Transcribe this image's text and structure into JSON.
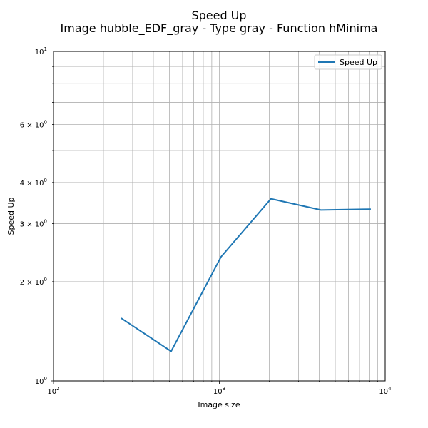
{
  "chart_data": {
    "type": "line",
    "title": "Speed Up",
    "subtitle": "Image hubble_EDF_gray - Type gray - Function hMinima",
    "xlabel": "Image size",
    "ylabel": "Speed Up",
    "xscale": "log",
    "yscale": "log",
    "xlim": [
      100,
      10000
    ],
    "ylim": [
      1,
      10
    ],
    "grid": "both major and minor",
    "legend_position": "top-right",
    "x_ticks": [
      {
        "value": 100,
        "base": "10",
        "exp": "2"
      },
      {
        "value": 1000,
        "base": "10",
        "exp": "3"
      },
      {
        "value": 10000,
        "base": "10",
        "exp": "4"
      }
    ],
    "y_ticks": [
      {
        "value": 1,
        "base": "10",
        "exp": "0",
        "mantissa": ""
      },
      {
        "value": 2,
        "base": "10",
        "exp": "0",
        "mantissa": "2 × "
      },
      {
        "value": 3,
        "base": "10",
        "exp": "0",
        "mantissa": "3 × "
      },
      {
        "value": 4,
        "base": "10",
        "exp": "0",
        "mantissa": "4 × "
      },
      {
        "value": 6,
        "base": "10",
        "exp": "0",
        "mantissa": "6 × "
      },
      {
        "value": 10,
        "base": "10",
        "exp": "1",
        "mantissa": ""
      }
    ],
    "series": [
      {
        "name": "Speed Up",
        "color": "#1f77b4",
        "x": [
          256,
          512,
          1024,
          2048,
          4096,
          8192
        ],
        "y": [
          1.55,
          1.23,
          2.38,
          3.57,
          3.3,
          3.32
        ]
      }
    ]
  }
}
